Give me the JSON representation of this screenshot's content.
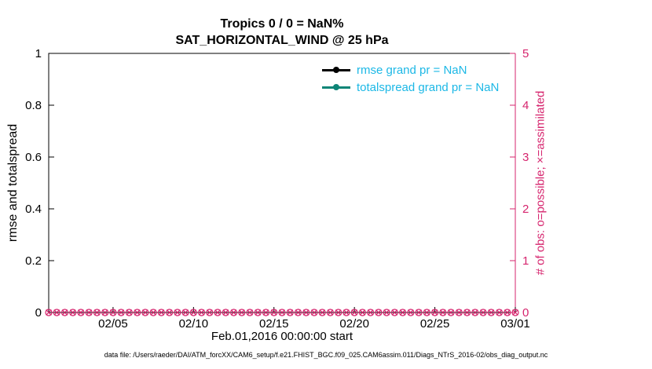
{
  "figure": {
    "title_line1": "Tropics 0 / 0 = NaN%",
    "title_line2": "SAT_HORIZONTAL_WIND @ 25 hPa",
    "caption": "data file: /Users/raeder/DAI/ATM_forcXX/CAM6_setup/f.e21.FHIST_BGC.f09_025.CAM6assim.011/Diags_NTrS_2016-02/obs_diag_output.nc"
  },
  "chart_data": {
    "type": "line",
    "title": "Tropics 0 / 0 = NaN%",
    "subtitle": "SAT_HORIZONTAL_WIND @ 25 hPa",
    "xlabel": "Feb.01,2016 00:00:00 start",
    "left_axis": {
      "label": "rmse and totalspread",
      "ylim": [
        0,
        1
      ],
      "ticks": [
        0,
        0.2,
        0.4,
        0.6,
        0.8,
        1
      ],
      "tick_labels": [
        "0",
        "0.2",
        "0.4",
        "0.6",
        "0.8",
        "1"
      ],
      "color": "#000000"
    },
    "right_axis": {
      "label": "# of obs: o=possible; ×=assimilated",
      "ylim": [
        0,
        5
      ],
      "ticks": [
        0,
        1,
        2,
        3,
        4,
        5
      ],
      "tick_labels": [
        "0",
        "1",
        "2",
        "3",
        "4",
        "5"
      ],
      "color": "#D6256E"
    },
    "x_axis": {
      "range_days": [
        0,
        29
      ],
      "ticks": [
        {
          "label": "02/05",
          "day": 4
        },
        {
          "label": "02/10",
          "day": 9
        },
        {
          "label": "02/15",
          "day": 14
        },
        {
          "label": "02/20",
          "day": 19
        },
        {
          "label": "02/25",
          "day": 24
        },
        {
          "label": "03/01",
          "day": 29
        }
      ]
    },
    "series": [
      {
        "name": "rmse",
        "legend": "rmse grand pr = NaN",
        "color": "#000000",
        "grand_pr": "NaN",
        "values": null
      },
      {
        "name": "totalspread",
        "legend": "totalspread grand pr = NaN",
        "color": "#0E8577",
        "grand_pr": "NaN",
        "values": null
      }
    ],
    "obs_markers": {
      "color": "#D6256E",
      "value": 0,
      "start_day": 0,
      "step_days": 0.5,
      "count": 59,
      "possible_marker": "o",
      "assimilated_marker": "×"
    },
    "legend": {
      "text_color": "#1CB8E6",
      "position": "top-right-inside"
    }
  }
}
